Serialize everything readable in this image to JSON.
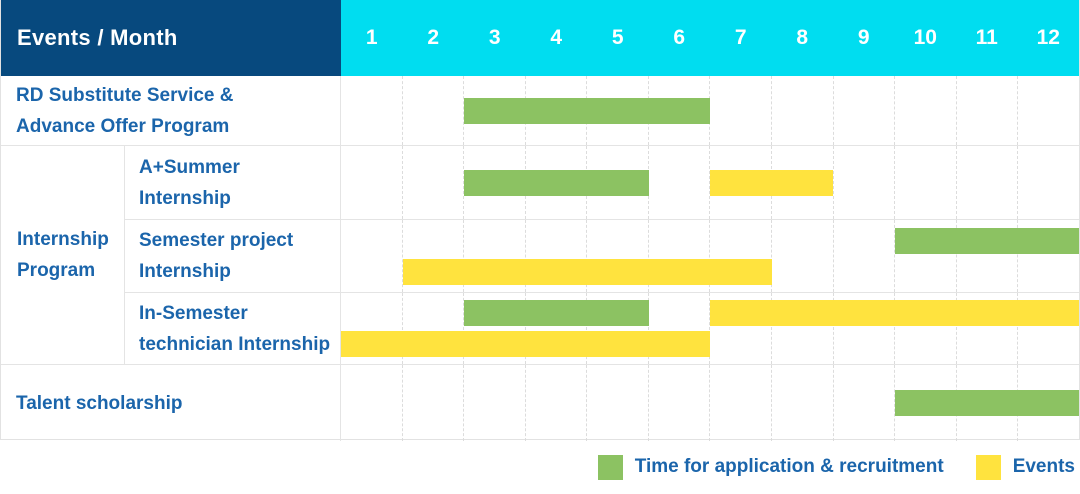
{
  "chart_data": {
    "type": "table",
    "subtype": "gantt",
    "title": "Events / Month",
    "months": [
      1,
      2,
      3,
      4,
      5,
      6,
      7,
      8,
      9,
      10,
      11,
      12
    ],
    "colors": {
      "header_navy": "#07497E",
      "header_cyan": "#00DDF0",
      "recruitment_green": "#8CC262",
      "event_yellow": "#FFE33E",
      "label_blue": "#1B65AB"
    },
    "rows": [
      {
        "label": "RD Substitute Service &\nAdvance Offer Program",
        "group": "",
        "lanes": [
          [
            {
              "kind": "recruitment",
              "start": 3,
              "end": 6
            }
          ]
        ]
      },
      {
        "label": "A+Summer\nInternship",
        "group": "Internship\nProgram",
        "lanes": [
          [
            {
              "kind": "recruitment",
              "start": 3,
              "end": 5
            },
            {
              "kind": "event",
              "start": 7,
              "end": 8
            }
          ]
        ]
      },
      {
        "label": "Semester project\nInternship",
        "group": "Internship\nProgram",
        "lanes": [
          [
            {
              "kind": "recruitment",
              "start": 10,
              "end": 12
            }
          ],
          [
            {
              "kind": "event",
              "start": 2,
              "end": 7
            }
          ]
        ]
      },
      {
        "label": "In-Semester\ntechnician Internship",
        "group": "Internship\nProgram",
        "lanes": [
          [
            {
              "kind": "recruitment",
              "start": 3,
              "end": 5
            },
            {
              "kind": "event",
              "start": 7,
              "end": 12
            }
          ],
          [
            {
              "kind": "event",
              "start": 1,
              "end": 6
            }
          ]
        ]
      },
      {
        "label": "Talent scholarship",
        "group": "",
        "lanes": [
          [
            {
              "kind": "recruitment",
              "start": 10,
              "end": 12
            }
          ]
        ]
      }
    ],
    "legend": [
      {
        "kind": "recruitment",
        "label": "Time for application & recruitment"
      },
      {
        "kind": "event",
        "label": "Events"
      }
    ]
  }
}
